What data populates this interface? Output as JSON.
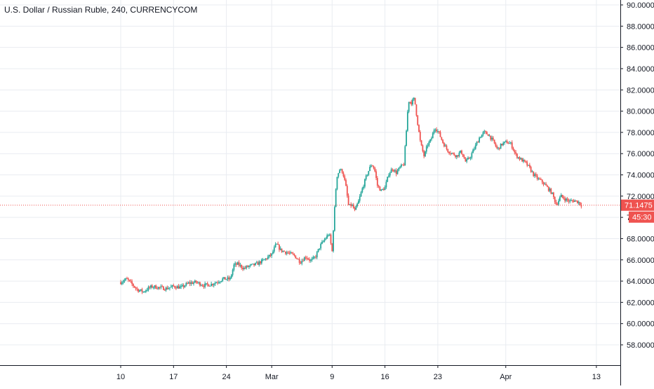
{
  "header": {
    "title": "U.S. Dollar / Russian Ruble, 240, CURRENCYCOM"
  },
  "colors": {
    "up": "#26a69a",
    "down": "#ef5350",
    "grid": "#e9ecf1",
    "axis": "#131722",
    "price_line": "#ef5350",
    "price_tag_bg": "#ef5350",
    "price_tag_text": "#ffffff"
  },
  "price_tag": {
    "value": "71.1475",
    "countdown": "45:30"
  },
  "chart_data": {
    "type": "candlestick",
    "title": "U.S. Dollar / Russian Ruble, 240, CURRENCYCOM",
    "xlabel": "",
    "ylabel": "",
    "ylim": [
      56.0,
      90.0
    ],
    "grid": true,
    "y_ticks": [
      "58.0000",
      "60.0000",
      "62.0000",
      "64.0000",
      "66.0000",
      "68.0000",
      "70.0000",
      "72.0000",
      "74.0000",
      "76.0000",
      "78.0000",
      "80.0000",
      "82.0000",
      "84.0000",
      "86.0000",
      "88.0000",
      "90.0000"
    ],
    "x_ticks": [
      {
        "label": "10",
        "day": 0
      },
      {
        "label": "17",
        "day": 7
      },
      {
        "label": "24",
        "day": 14
      },
      {
        "label": "Mar",
        "day": 20
      },
      {
        "label": "9",
        "day": 28
      },
      {
        "label": "16",
        "day": 35
      },
      {
        "label": "23",
        "day": 42
      },
      {
        "label": "Apr",
        "day": 51
      },
      {
        "label": "13",
        "day": 63
      }
    ],
    "last_price": 71.1475,
    "path": [
      [
        0.0,
        63.9
      ],
      [
        0.8,
        64.2
      ],
      [
        1.5,
        63.7
      ],
      [
        2.2,
        63.2
      ],
      [
        3.0,
        63.0
      ],
      [
        3.6,
        63.3
      ],
      [
        4.2,
        63.5
      ],
      [
        5.0,
        63.4
      ],
      [
        6.0,
        63.3
      ],
      [
        7.0,
        63.5
      ],
      [
        8.0,
        63.4
      ],
      [
        9.0,
        63.8
      ],
      [
        10.0,
        63.9
      ],
      [
        11.0,
        63.6
      ],
      [
        12.0,
        63.7
      ],
      [
        13.0,
        64.0
      ],
      [
        13.5,
        64.2
      ],
      [
        14.5,
        64.2
      ],
      [
        15.0,
        65.5
      ],
      [
        15.5,
        65.6
      ],
      [
        16.3,
        65.2
      ],
      [
        17.0,
        65.4
      ],
      [
        18.0,
        65.6
      ],
      [
        19.0,
        66.0
      ],
      [
        20.0,
        66.5
      ],
      [
        20.6,
        67.5
      ],
      [
        21.2,
        66.9
      ],
      [
        22.0,
        66.7
      ],
      [
        23.0,
        66.4
      ],
      [
        23.8,
        65.8
      ],
      [
        24.5,
        66.3
      ],
      [
        25.2,
        65.9
      ],
      [
        25.8,
        66.3
      ],
      [
        26.4,
        67.3
      ],
      [
        27.0,
        67.9
      ],
      [
        27.6,
        68.5
      ],
      [
        28.0,
        66.8
      ],
      [
        28.3,
        70.5
      ],
      [
        28.6,
        73.8
      ],
      [
        29.0,
        74.5
      ],
      [
        29.4,
        74.3
      ],
      [
        29.8,
        73.0
      ],
      [
        30.2,
        71.0
      ],
      [
        30.6,
        71.2
      ],
      [
        31.0,
        70.6
      ],
      [
        31.5,
        71.5
      ],
      [
        32.0,
        72.7
      ],
      [
        32.6,
        74.0
      ],
      [
        33.2,
        75.0
      ],
      [
        33.6,
        74.6
      ],
      [
        34.0,
        73.0
      ],
      [
        34.5,
        72.5
      ],
      [
        35.0,
        72.8
      ],
      [
        35.5,
        74.1
      ],
      [
        36.0,
        74.6
      ],
      [
        36.5,
        74.2
      ],
      [
        37.0,
        74.7
      ],
      [
        37.5,
        75.0
      ],
      [
        37.8,
        77.8
      ],
      [
        38.1,
        81.0
      ],
      [
        38.5,
        80.8
      ],
      [
        38.9,
        81.2
      ],
      [
        39.3,
        79.0
      ],
      [
        39.7,
        77.0
      ],
      [
        40.2,
        75.7
      ],
      [
        40.6,
        76.8
      ],
      [
        41.1,
        77.3
      ],
      [
        41.6,
        78.5
      ],
      [
        42.1,
        78.0
      ],
      [
        42.7,
        77.0
      ],
      [
        43.3,
        76.3
      ],
      [
        43.9,
        76.0
      ],
      [
        44.5,
        75.8
      ],
      [
        45.1,
        76.2
      ],
      [
        45.7,
        75.2
      ],
      [
        46.3,
        75.7
      ],
      [
        46.9,
        76.6
      ],
      [
        47.5,
        77.5
      ],
      [
        48.1,
        78.0
      ],
      [
        48.7,
        77.8
      ],
      [
        49.3,
        77.2
      ],
      [
        49.9,
        76.4
      ],
      [
        50.5,
        76.9
      ],
      [
        51.1,
        77.1
      ],
      [
        51.7,
        76.9
      ],
      [
        52.3,
        75.9
      ],
      [
        52.9,
        75.5
      ],
      [
        53.5,
        75.2
      ],
      [
        54.1,
        74.7
      ],
      [
        54.7,
        74.0
      ],
      [
        55.3,
        73.6
      ],
      [
        55.9,
        73.3
      ],
      [
        56.5,
        72.8
      ],
      [
        57.1,
        72.3
      ],
      [
        57.7,
        71.2
      ],
      [
        58.3,
        72.0
      ],
      [
        58.9,
        71.7
      ],
      [
        59.5,
        71.5
      ],
      [
        60.1,
        71.6
      ],
      [
        60.7,
        71.4
      ],
      [
        61.1,
        71.1
      ]
    ]
  }
}
